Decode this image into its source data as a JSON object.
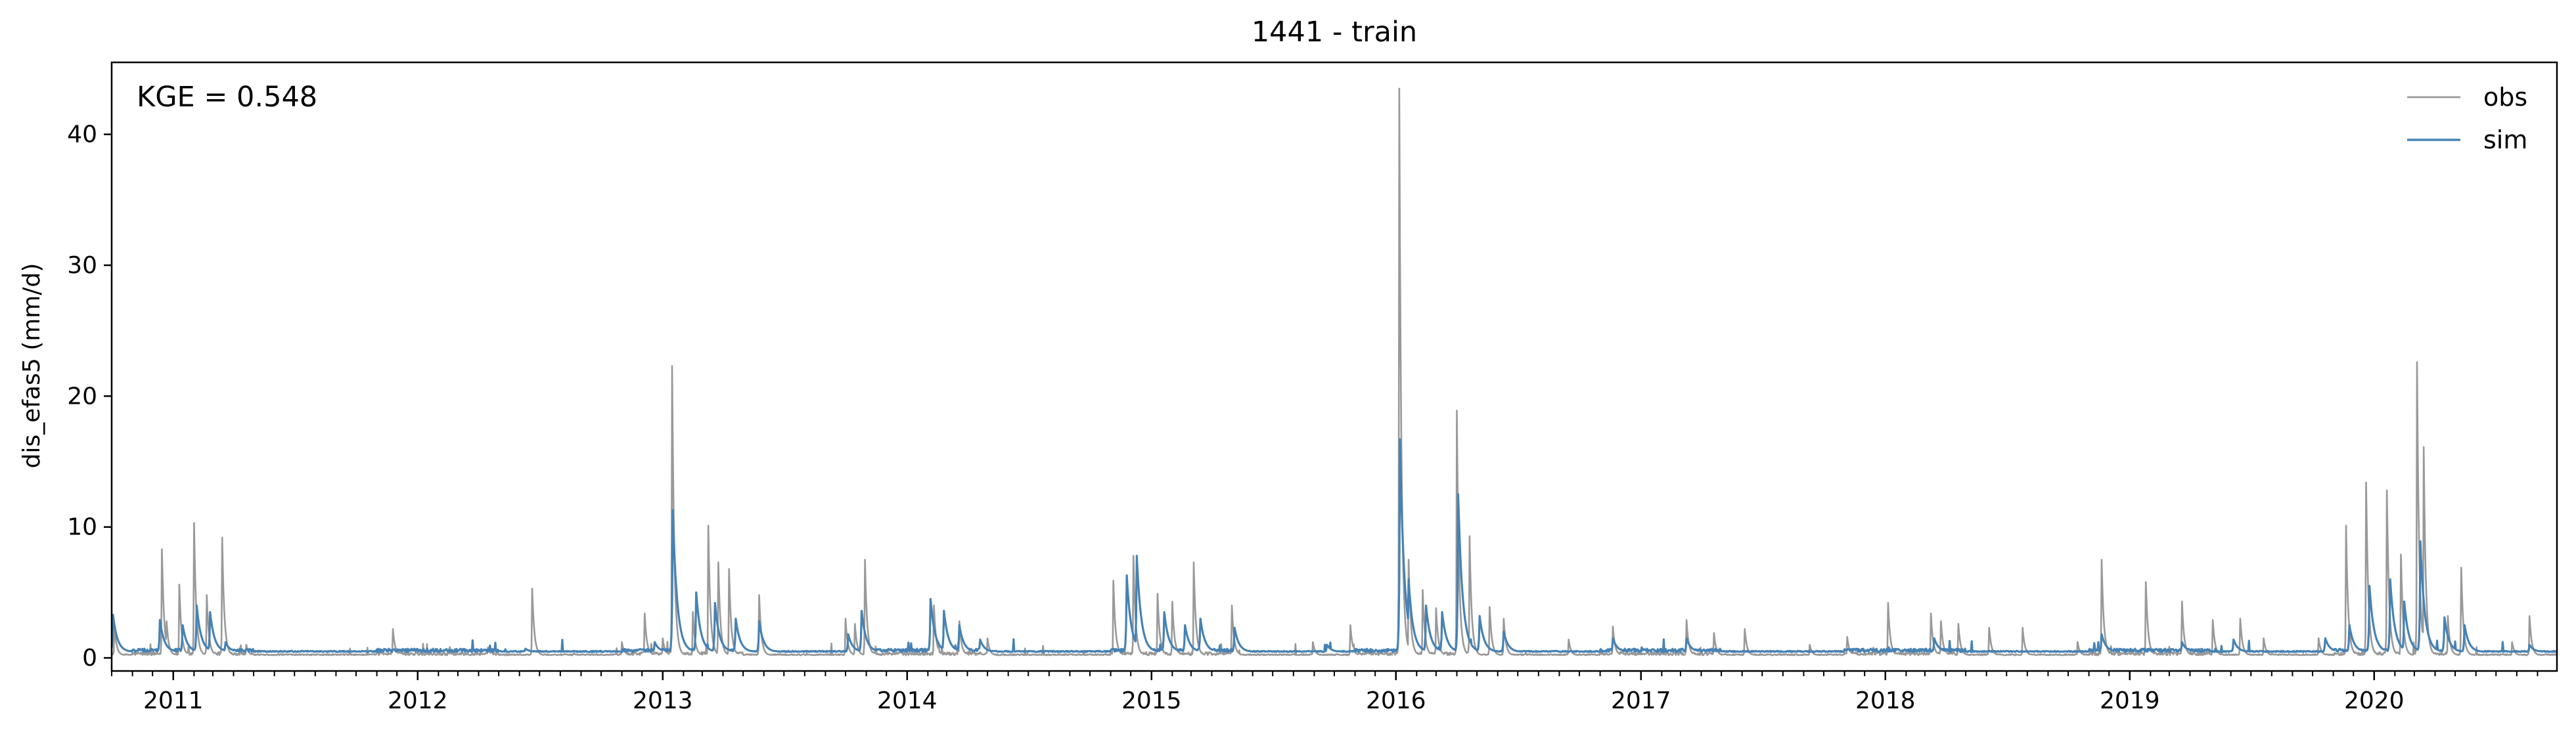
{
  "chart_data": {
    "type": "line",
    "title": "1441 - train",
    "ylabel": "dis_efas5 (mm/d)",
    "xlabel": "",
    "annotation": "KGE = 0.548",
    "legend_position": "upper right",
    "grid": false,
    "xlim": [
      "2010-10-01",
      "2020-09-30"
    ],
    "ylim": [
      -1,
      45.5
    ],
    "yticks": [
      0,
      10,
      20,
      30,
      40
    ],
    "ytick_labels": [
      "0",
      "10",
      "20",
      "30",
      "40"
    ],
    "xticks": [
      "2011-01-01",
      "2012-01-01",
      "2013-01-01",
      "2014-01-01",
      "2015-01-01",
      "2016-01-01",
      "2017-01-01",
      "2018-01-01",
      "2019-01-01",
      "2020-01-01"
    ],
    "xtick_labels": [
      "2011",
      "2012",
      "2013",
      "2014",
      "2015",
      "2016",
      "2017",
      "2018",
      "2019",
      "2020"
    ],
    "baseline": {
      "obs": 0.2,
      "sim": 0.45
    },
    "series": [
      {
        "name": "obs",
        "color": "#999999",
        "events": [
          [
            "2010-10-05",
            2.5
          ],
          [
            "2010-12-15",
            8.3
          ],
          [
            "2010-12-22",
            2.8
          ],
          [
            "2011-01-10",
            5.6
          ],
          [
            "2011-02-01",
            10.3
          ],
          [
            "2011-02-20",
            4.8
          ],
          [
            "2011-03-15",
            9.2
          ],
          [
            "2011-04-20",
            1.0
          ],
          [
            "2011-11-25",
            2.2
          ],
          [
            "2012-04-15",
            0.8
          ],
          [
            "2012-06-20",
            5.3
          ],
          [
            "2012-11-01",
            1.2
          ],
          [
            "2012-12-05",
            3.4
          ],
          [
            "2013-01-01",
            1.5
          ],
          [
            "2013-01-15",
            22.3
          ],
          [
            "2013-02-15",
            3.5
          ],
          [
            "2013-03-10",
            10.1
          ],
          [
            "2013-03-25",
            7.3
          ],
          [
            "2013-04-10",
            6.8
          ],
          [
            "2013-05-25",
            4.8
          ],
          [
            "2013-10-01",
            3.0
          ],
          [
            "2013-10-15",
            2.6
          ],
          [
            "2013-10-30",
            7.5
          ],
          [
            "2014-02-10",
            4.0
          ],
          [
            "2014-03-20",
            2.8
          ],
          [
            "2014-05-01",
            1.5
          ],
          [
            "2014-11-05",
            5.9
          ],
          [
            "2014-12-05",
            7.8
          ],
          [
            "2015-01-10",
            4.9
          ],
          [
            "2015-02-01",
            4.3
          ],
          [
            "2015-03-05",
            7.3
          ],
          [
            "2015-05-01",
            4.0
          ],
          [
            "2015-08-30",
            1.2
          ],
          [
            "2015-10-25",
            2.5
          ],
          [
            "2016-01-06",
            43.5
          ],
          [
            "2016-01-20",
            7.5
          ],
          [
            "2016-02-10",
            5.2
          ],
          [
            "2016-03-01",
            3.8
          ],
          [
            "2016-04-01",
            18.9
          ],
          [
            "2016-04-20",
            9.3
          ],
          [
            "2016-05-20",
            3.9
          ],
          [
            "2016-06-10",
            3.0
          ],
          [
            "2016-09-15",
            1.4
          ],
          [
            "2016-11-20",
            2.4
          ],
          [
            "2017-03-10",
            2.9
          ],
          [
            "2017-04-20",
            1.9
          ],
          [
            "2017-06-05",
            2.2
          ],
          [
            "2017-09-10",
            1.0
          ],
          [
            "2017-11-05",
            1.6
          ],
          [
            "2018-01-05",
            4.2
          ],
          [
            "2018-03-10",
            3.4
          ],
          [
            "2018-03-25",
            2.8
          ],
          [
            "2018-04-20",
            2.6
          ],
          [
            "2018-06-05",
            2.3
          ],
          [
            "2018-07-25",
            2.3
          ],
          [
            "2018-10-15",
            1.2
          ],
          [
            "2018-11-20",
            7.5
          ],
          [
            "2019-01-25",
            5.8
          ],
          [
            "2019-03-20",
            4.3
          ],
          [
            "2019-05-05",
            2.9
          ],
          [
            "2019-06-15",
            3.0
          ],
          [
            "2019-07-20",
            1.5
          ],
          [
            "2019-10-10",
            1.5
          ],
          [
            "2019-11-20",
            10.1
          ],
          [
            "2019-12-20",
            13.4
          ],
          [
            "2020-01-20",
            12.8
          ],
          [
            "2020-02-10",
            7.9
          ],
          [
            "2020-03-05",
            22.6
          ],
          [
            "2020-03-15",
            16.1
          ],
          [
            "2020-04-20",
            3.2
          ],
          [
            "2020-05-10",
            6.9
          ],
          [
            "2020-07-25",
            1.2
          ],
          [
            "2020-08-20",
            3.2
          ]
        ]
      },
      {
        "name": "sim",
        "color": "#4682b4",
        "events": [
          [
            "2010-10-03",
            3.3
          ],
          [
            "2010-12-12",
            2.9
          ],
          [
            "2011-01-15",
            2.5
          ],
          [
            "2011-02-05",
            4.0
          ],
          [
            "2011-02-25",
            3.5
          ],
          [
            "2011-03-20",
            1.2
          ],
          [
            "2012-06-10",
            0.7
          ],
          [
            "2012-12-20",
            1.2
          ],
          [
            "2013-01-16",
            11.3
          ],
          [
            "2013-02-20",
            5.0
          ],
          [
            "2013-03-20",
            4.2
          ],
          [
            "2013-04-20",
            3.0
          ],
          [
            "2013-05-25",
            2.8
          ],
          [
            "2013-10-05",
            1.8
          ],
          [
            "2013-10-25",
            3.6
          ],
          [
            "2014-02-05",
            4.5
          ],
          [
            "2014-02-25",
            3.6
          ],
          [
            "2014-03-20",
            2.5
          ],
          [
            "2014-04-20",
            1.4
          ],
          [
            "2014-11-25",
            6.3
          ],
          [
            "2014-12-10",
            7.8
          ],
          [
            "2015-01-20",
            3.5
          ],
          [
            "2015-02-20",
            2.5
          ],
          [
            "2015-03-15",
            3.0
          ],
          [
            "2015-05-05",
            2.3
          ],
          [
            "2015-09-20",
            1.0
          ],
          [
            "2016-01-07",
            16.7
          ],
          [
            "2016-01-20",
            6.0
          ],
          [
            "2016-02-15",
            4.0
          ],
          [
            "2016-03-10",
            3.5
          ],
          [
            "2016-04-03",
            12.5
          ],
          [
            "2016-05-05",
            3.2
          ],
          [
            "2016-06-10",
            2.0
          ],
          [
            "2016-11-20",
            1.5
          ],
          [
            "2017-03-10",
            1.5
          ],
          [
            "2018-03-15",
            1.5
          ],
          [
            "2018-11-20",
            1.8
          ],
          [
            "2019-03-20",
            1.2
          ],
          [
            "2019-06-05",
            1.4
          ],
          [
            "2019-10-20",
            1.5
          ],
          [
            "2019-11-25",
            2.5
          ],
          [
            "2019-12-25",
            5.5
          ],
          [
            "2020-01-25",
            6.0
          ],
          [
            "2020-02-15",
            4.3
          ],
          [
            "2020-03-10",
            8.9
          ],
          [
            "2020-04-15",
            3.1
          ],
          [
            "2020-05-15",
            2.5
          ],
          [
            "2020-08-20",
            1.0
          ]
        ]
      }
    ]
  }
}
